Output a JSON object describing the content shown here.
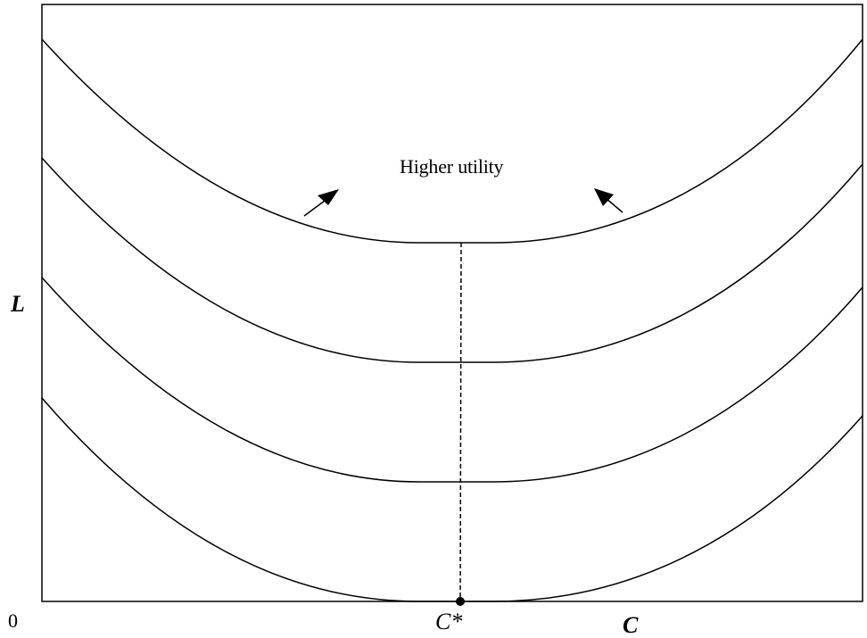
{
  "axes": {
    "origin_label": "0",
    "y_label": "L",
    "x_label": "C"
  },
  "optimum": {
    "label": "C*"
  },
  "annotation": {
    "text": "Higher utility"
  },
  "curves": {
    "count": 4,
    "description": "U-shaped indifference curves, each with its minimum at C*; curves higher up give higher utility"
  },
  "colors": {
    "line": "#000000",
    "background": "#ffffff"
  }
}
